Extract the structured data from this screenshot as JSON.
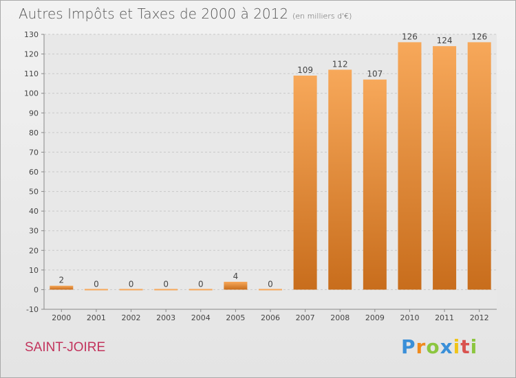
{
  "header": {
    "title": "Autres Impôts et Taxes de 2000 à 2012",
    "unit": "(en milliers d'€)"
  },
  "footer": {
    "city": "SAINT-JOIRE",
    "brand_letters": [
      {
        "char": "P",
        "color": "#3a8fd8"
      },
      {
        "char": "r",
        "color": "#f08a1c"
      },
      {
        "char": "o",
        "color": "#8cc63f"
      },
      {
        "char": "x",
        "color": "#3a8fd8"
      },
      {
        "char": "i",
        "color": "#f0c419"
      },
      {
        "char": "t",
        "color": "#d9534f"
      },
      {
        "char": "i",
        "color": "#8cc63f"
      }
    ]
  },
  "chart_data": {
    "type": "bar",
    "categories": [
      "2000",
      "2001",
      "2002",
      "2003",
      "2004",
      "2005",
      "2006",
      "2007",
      "2008",
      "2009",
      "2010",
      "2011",
      "2012"
    ],
    "values": [
      2,
      0,
      0,
      0,
      0,
      4,
      0,
      109,
      112,
      107,
      126,
      124,
      126
    ],
    "data_labels": [
      "2",
      "0",
      "0",
      "0",
      "0",
      "4",
      "0",
      "109",
      "112",
      "107",
      "126",
      "124",
      "126"
    ],
    "ylim": [
      -10,
      130
    ],
    "y_ticks": [
      -10,
      0,
      10,
      20,
      30,
      40,
      50,
      60,
      70,
      80,
      90,
      100,
      110,
      120,
      130
    ],
    "grid": true,
    "bar_color_light": "#f7a85a",
    "bar_color_dark": "#c86d1c"
  }
}
